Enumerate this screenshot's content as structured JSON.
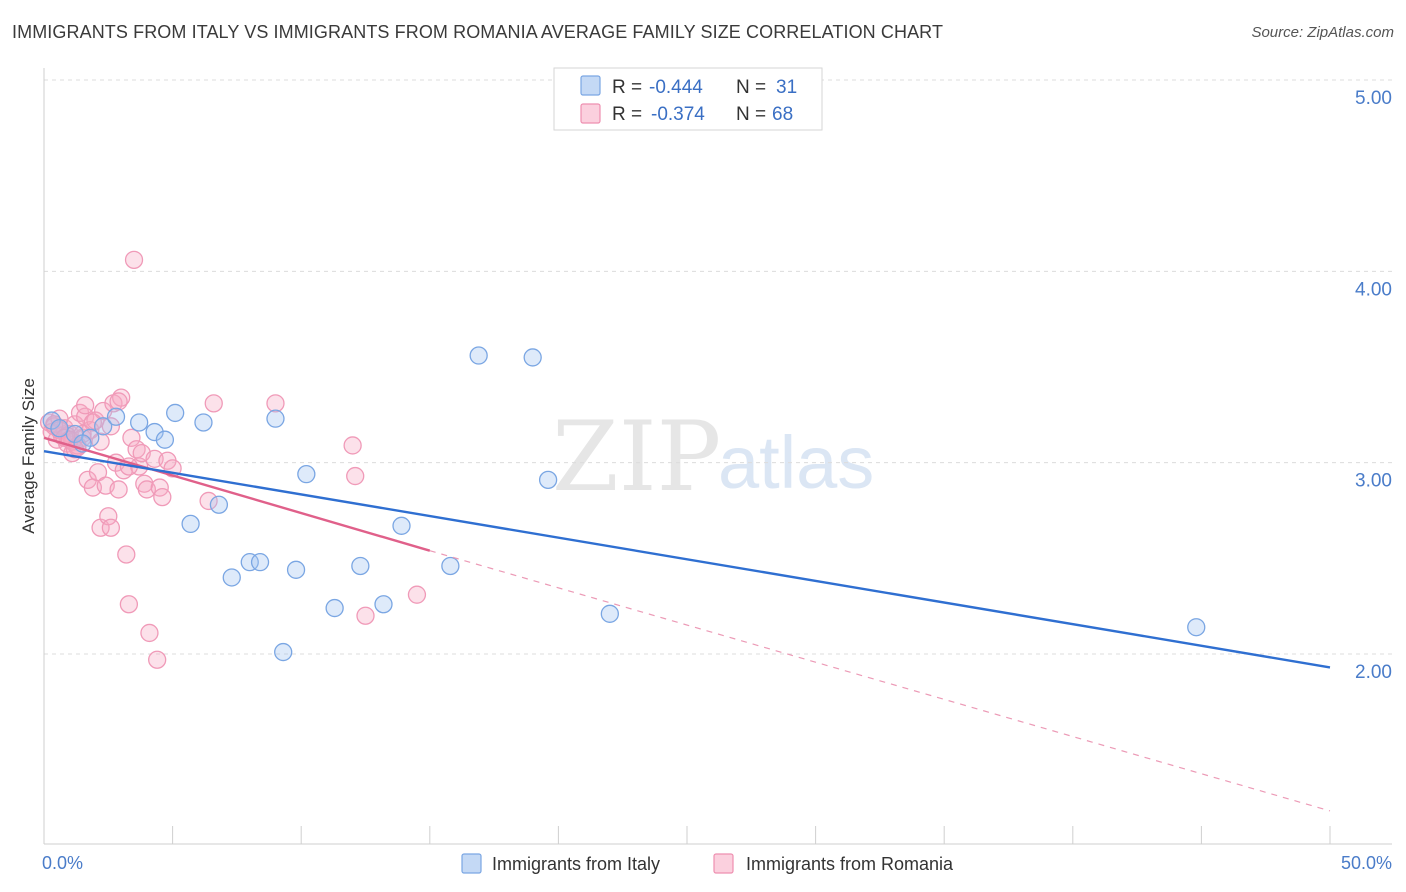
{
  "header": {
    "title": "IMMIGRANTS FROM ITALY VS IMMIGRANTS FROM ROMANIA AVERAGE FAMILY SIZE CORRELATION CHART",
    "source": "Source: ZipAtlas.com"
  },
  "watermark": {
    "zip": "ZIP",
    "atlas": "atlas"
  },
  "chart_data": {
    "type": "scatter",
    "title": "IMMIGRANTS FROM ITALY VS IMMIGRANTS FROM ROMANIA AVERAGE FAMILY SIZE CORRELATION CHART",
    "xlabel": "",
    "ylabel": "Average Family Size",
    "xlim": [
      0,
      50
    ],
    "ylim": [
      1.0,
      5.1
    ],
    "x_tick_labels": [
      "0.0%",
      "50.0%"
    ],
    "y_ticks": [
      2.0,
      3.0,
      4.0,
      5.0
    ],
    "y_tick_labels": [
      "2.00",
      "3.00",
      "4.00",
      "5.00"
    ],
    "grid": true,
    "legend_placement": "top-center",
    "series": [
      {
        "name": "Immigrants from Italy",
        "color": "#6a9fe0",
        "line_color": "#2f6fd1",
        "R": "-0.444",
        "N": "31",
        "trend": {
          "x0": 0.0,
          "y0": 3.06,
          "x1": 50.0,
          "y1": 1.93
        },
        "points": [
          [
            0.3,
            3.22
          ],
          [
            1.2,
            3.15
          ],
          [
            1.8,
            3.13
          ],
          [
            2.3,
            3.19
          ],
          [
            2.8,
            3.24
          ],
          [
            3.7,
            3.21
          ],
          [
            4.3,
            3.16
          ],
          [
            4.7,
            3.12
          ],
          [
            5.1,
            3.26
          ],
          [
            5.7,
            2.68
          ],
          [
            6.2,
            3.21
          ],
          [
            6.8,
            2.78
          ],
          [
            7.3,
            2.4
          ],
          [
            8.0,
            2.48
          ],
          [
            8.4,
            2.48
          ],
          [
            9.0,
            3.23
          ],
          [
            9.3,
            2.01
          ],
          [
            9.8,
            2.44
          ],
          [
            10.2,
            2.94
          ],
          [
            11.3,
            2.24
          ],
          [
            12.3,
            2.46
          ],
          [
            13.2,
            2.26
          ],
          [
            13.9,
            2.67
          ],
          [
            15.8,
            2.46
          ],
          [
            16.9,
            3.56
          ],
          [
            19.0,
            3.55
          ],
          [
            19.6,
            2.91
          ],
          [
            22.0,
            2.21
          ],
          [
            44.8,
            2.14
          ],
          [
            0.6,
            3.18
          ],
          [
            1.5,
            3.1
          ]
        ]
      },
      {
        "name": "Immigrants from Romania",
        "color": "#f090b0",
        "line_color": "#e0608a",
        "R": "-0.374",
        "N": "68",
        "trend": {
          "x0": 0.0,
          "y0": 3.13,
          "x1": 15.0,
          "y1": 2.54
        },
        "trend_dashed": {
          "x0": 15.0,
          "y0": 2.54,
          "x1": 50.0,
          "y1": 1.18
        },
        "points": [
          [
            0.2,
            3.21
          ],
          [
            0.3,
            3.16
          ],
          [
            0.4,
            3.19
          ],
          [
            0.5,
            3.12
          ],
          [
            0.6,
            3.23
          ],
          [
            0.7,
            3.14
          ],
          [
            0.8,
            3.18
          ],
          [
            0.9,
            3.1
          ],
          [
            1.0,
            3.15
          ],
          [
            1.1,
            3.05
          ],
          [
            1.2,
            3.2
          ],
          [
            1.3,
            3.08
          ],
          [
            1.4,
            3.26
          ],
          [
            1.5,
            3.13
          ],
          [
            1.6,
            3.24
          ],
          [
            1.7,
            2.91
          ],
          [
            1.8,
            3.17
          ],
          [
            1.9,
            2.87
          ],
          [
            2.0,
            3.22
          ],
          [
            2.1,
            2.95
          ],
          [
            2.2,
            2.66
          ],
          [
            2.3,
            3.27
          ],
          [
            2.4,
            2.88
          ],
          [
            2.5,
            2.72
          ],
          [
            2.6,
            2.66
          ],
          [
            2.7,
            3.31
          ],
          [
            2.8,
            3.0
          ],
          [
            2.9,
            2.86
          ],
          [
            3.0,
            3.34
          ],
          [
            3.1,
            2.96
          ],
          [
            3.2,
            2.52
          ],
          [
            3.3,
            2.26
          ],
          [
            3.4,
            3.13
          ],
          [
            3.5,
            4.06
          ],
          [
            3.6,
            3.07
          ],
          [
            3.7,
            2.98
          ],
          [
            3.8,
            3.05
          ],
          [
            3.9,
            2.89
          ],
          [
            4.0,
            2.86
          ],
          [
            4.1,
            2.11
          ],
          [
            4.3,
            3.02
          ],
          [
            4.4,
            1.97
          ],
          [
            4.5,
            2.87
          ],
          [
            4.6,
            2.82
          ],
          [
            4.8,
            3.01
          ],
          [
            5.0,
            2.97
          ],
          [
            6.4,
            2.8
          ],
          [
            6.6,
            3.31
          ],
          [
            9.0,
            3.31
          ],
          [
            12.0,
            3.09
          ],
          [
            12.1,
            2.93
          ],
          [
            12.5,
            2.2
          ],
          [
            14.5,
            2.31
          ],
          [
            0.9,
            3.14
          ],
          [
            1.1,
            3.11
          ],
          [
            1.3,
            3.09
          ],
          [
            1.6,
            3.3
          ],
          [
            1.9,
            3.21
          ],
          [
            2.2,
            3.11
          ],
          [
            2.6,
            3.19
          ],
          [
            2.9,
            3.32
          ],
          [
            3.3,
            2.98
          ],
          [
            0.4,
            3.2
          ],
          [
            0.6,
            3.17
          ],
          [
            0.8,
            3.13
          ],
          [
            1.0,
            3.12
          ],
          [
            1.2,
            3.07
          ],
          [
            1.5,
            3.15
          ]
        ]
      }
    ]
  },
  "legend": {
    "r_label": "R =",
    "n_label": "N =",
    "italy_r": "-0.444",
    "italy_n": "31",
    "romania_r": "-0.374",
    "romania_n": "68"
  },
  "bottom_legend": {
    "italy": "Immigrants from Italy",
    "romania": "Immigrants from Romania"
  }
}
